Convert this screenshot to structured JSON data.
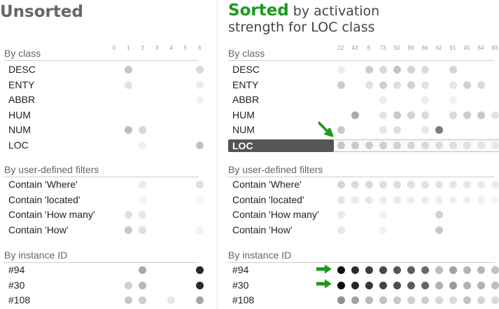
{
  "left": {
    "title": "Unsorted",
    "columns": [
      "0",
      "1",
      "2",
      "3",
      "4",
      "5",
      "6"
    ],
    "sections": [
      {
        "header": "By class",
        "rows": [
          {
            "label": "DESC",
            "dots": [
              null,
              "#c6c6c6",
              null,
              null,
              null,
              null,
              "#dadada"
            ]
          },
          {
            "label": "ENTY",
            "dots": [
              null,
              "#e2e2e2",
              null,
              null,
              null,
              null,
              "#ececec"
            ]
          },
          {
            "label": "ABBR",
            "dots": [
              null,
              null,
              null,
              null,
              null,
              null,
              "#f3f3f3"
            ]
          },
          {
            "label": "HUM",
            "dots": [
              null,
              null,
              null,
              null,
              null,
              null,
              null
            ]
          },
          {
            "label": "NUM",
            "dots": [
              null,
              "#bdbdbd",
              "#d6d6d6",
              null,
              null,
              null,
              null
            ]
          },
          {
            "label": "LOC",
            "dots": [
              null,
              null,
              "#f0f0f0",
              null,
              null,
              null,
              "#c2c2c2"
            ]
          }
        ]
      },
      {
        "header": "By user-defined filters",
        "rows": [
          {
            "label": "Contain 'Where'",
            "dots": [
              null,
              null,
              "#ececec",
              null,
              null,
              null,
              "#dedede"
            ]
          },
          {
            "label": "Contain 'located'",
            "dots": [
              null,
              null,
              "#f3f3f3",
              null,
              null,
              null,
              "#f3f3f3"
            ]
          },
          {
            "label": "Contain 'How many'",
            "dots": [
              null,
              "#e0e0e0",
              "#e8e8e8",
              null,
              null,
              null,
              null
            ]
          },
          {
            "label": "Contain 'How'",
            "dots": [
              null,
              "#c8c8c8",
              "#dfdfdf",
              null,
              null,
              null,
              "#f1f1f1"
            ]
          }
        ]
      },
      {
        "header": "By instance ID",
        "rows": [
          {
            "label": "#94",
            "dots": [
              null,
              null,
              "#a8a8a8",
              null,
              null,
              null,
              "#2a2a2a"
            ]
          },
          {
            "label": "#30",
            "dots": [
              null,
              "#cfcfcf",
              "#b8b8b8",
              null,
              null,
              null,
              "#2a2a2a"
            ]
          },
          {
            "label": "#108",
            "dots": [
              null,
              "#c8c8c8",
              "#cdcdcd",
              null,
              "#e6e6e6",
              null,
              "#a6a6a6"
            ]
          }
        ]
      }
    ]
  },
  "right": {
    "title_strong": "Sorted",
    "title_rest_line1": "by activation",
    "title_rest_line2": "strength for LOC class",
    "columns": [
      "22",
      "43",
      "6",
      "73",
      "50",
      "99",
      "66",
      "62",
      "91",
      "45",
      "64",
      "83"
    ],
    "sections": [
      {
        "header": "By class",
        "rows": [
          {
            "label": "DESC",
            "dots": [
              "#ececec",
              null,
              "#cdcdcd",
              "#dadada",
              "#c4c4c4",
              "#d2d2d2",
              "#dadada",
              null,
              "#d6d6d6",
              null,
              null,
              null
            ]
          },
          {
            "label": "ENTY",
            "dots": [
              "#cdcdcd",
              null,
              "#e2e2e2",
              "#cfcfcf",
              "#dedede",
              "#d2d2d2",
              "#e2e2e2",
              null,
              "#e6e6e6",
              "#d2d2d2",
              "#dadada",
              null
            ]
          },
          {
            "label": "ABBR",
            "dots": [
              null,
              null,
              null,
              "#ececec",
              null,
              null,
              "#eeeeee",
              null,
              "#f1f1f1",
              null,
              null,
              null
            ]
          },
          {
            "label": "HUM",
            "dots": [
              null,
              "#aaaaaa",
              null,
              "#e2e2e2",
              "#c8c8c8",
              "#d2d2d2",
              "#dadada",
              null,
              "#dadada",
              "#cdcdcd",
              "#c8c8c8",
              "#e2e2e2"
            ]
          },
          {
            "label": "NUM",
            "dots": [
              "#c8c8c8",
              null,
              null,
              "#e6e6e6",
              "#dedede",
              null,
              "#e8e8e8",
              "#7d7d7d",
              null,
              null,
              null,
              null
            ]
          },
          {
            "label": "LOC",
            "highlight": true,
            "dots": [
              "#c6c6c6",
              "#c9c9c9",
              "#cccccc",
              "#cfcfcf",
              "#d2d2d2",
              "#d5d5d5",
              "#d8d8d8",
              "#dbdbdb",
              "#dedede",
              "#e1e1e1",
              "#e4e4e4",
              "#e7e7e7"
            ]
          }
        ]
      },
      {
        "header": "By user-defined filters",
        "rows": [
          {
            "label": "Contain 'Where'",
            "dots": [
              "#d6d6d6",
              "#dadada",
              "#dadada",
              "#dedede",
              "#dedede",
              "#e0e0e0",
              "#e2e2e2",
              "#e4e4e4",
              "#e6e6e6",
              "#e8e8e8",
              "#eaeaea",
              "#ececec"
            ]
          },
          {
            "label": "Contain 'located'",
            "dots": [
              "#e6e6e6",
              "#eaeaea",
              "#e8e8e8",
              "#ececec",
              "#eaeaea",
              "#eeeeee",
              "#ececec",
              "#eeeeee",
              "#f0f0f0",
              "#f0f0f0",
              "#f1f1f1",
              "#f3f3f3"
            ]
          },
          {
            "label": "Contain 'How many'",
            "dots": [
              "#ececec",
              null,
              null,
              "#f1f1f1",
              null,
              null,
              null,
              "#d2d2d2",
              null,
              null,
              null,
              null
            ]
          },
          {
            "label": "Contain 'How'",
            "dots": [
              "#e8e8e8",
              null,
              null,
              "#f1f1f1",
              null,
              null,
              null,
              "#c8c8c8",
              null,
              null,
              null,
              null
            ]
          }
        ]
      },
      {
        "header": "By instance ID",
        "rows": [
          {
            "label": "#94",
            "arrow": true,
            "dots": [
              "#111111",
              "#2e2e2e",
              "#3e3e3e",
              "#474747",
              "#555555",
              "#5d5d5d",
              "#6a6a6a",
              "#bdbdbd",
              "#a0a0a0",
              "#b4b4b4",
              "#b6b6b6",
              "#c1c1c1"
            ]
          },
          {
            "label": "#30",
            "arrow": true,
            "dots": [
              "#0c0c0c",
              "#262626",
              "#363636",
              "#444444",
              "#4d4d4d",
              "#5b5b5b",
              "#676767",
              "#b0b0b0",
              "#9a9a9a",
              "#b2b2b2",
              "#b2b2b2",
              "#bdbdbd"
            ]
          },
          {
            "label": "#108",
            "dots": [
              "#8f8f8f",
              "#a3a3a3",
              "#b8b8b8",
              "#c1c1c1",
              "#c8c8c8",
              "#cfcfcf",
              "#cecece",
              "#d6d6d6",
              "#dadada",
              "#c1c1c1",
              "#d2d2d2",
              "#dadada"
            ]
          }
        ]
      }
    ]
  },
  "colors": {
    "green": "#1c9a1c",
    "title_gray": "#666666",
    "loc_bar": "#555555"
  }
}
